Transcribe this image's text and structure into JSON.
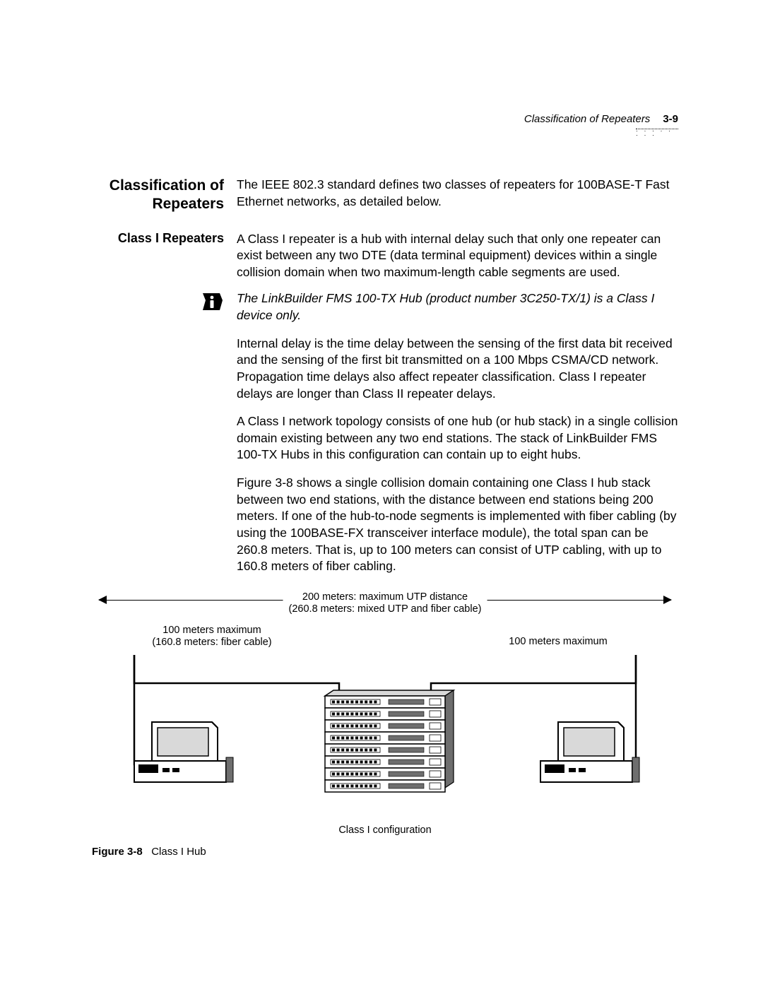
{
  "header": {
    "running_title": "Classification of Repeaters",
    "page_number": "3-9"
  },
  "section": {
    "title_line1": "Classification of",
    "title_line2": "Repeaters",
    "intro": "The IEEE 802.3 standard defines two classes of repeaters for 100BASE-T Fast Ethernet networks, as detailed below."
  },
  "class1": {
    "heading": "Class I Repeaters",
    "p1": "A Class I repeater is a hub with internal delay such that only one repeater can exist between any two DTE (data terminal equipment) devices within a single collision domain when two maximum-length cable segments are used.",
    "note": "The LinkBuilder FMS 100-TX Hub (product number 3C250-TX/1) is a Class I device only.",
    "p2": "Internal delay is the time delay between the sensing of the first data bit received and the sensing of the first bit transmitted on a 100 Mbps CSMA/CD network. Propagation time delays also affect repeater classification. Class I repeater delays are longer than Class II repeater delays.",
    "p3": "A Class I network topology consists of one hub (or hub stack) in a single collision domain existing between any two end stations. The stack of LinkBuilder FMS 100-TX Hubs in this configuration can contain up to eight hubs.",
    "p4": "Figure 3-8 shows a single collision domain containing one Class I hub stack between two end stations, with the distance between end stations being 200 meters. If one of the hub-to-node segments is implemented with fiber cabling (by using the 100BASE-FX transceiver interface module), the total span can be 260.8 meters. That is, up to 100 meters can consist of UTP cabling, with up to 160.8 meters of fiber cabling."
  },
  "figure": {
    "top_label_line1": "200 meters: maximum UTP distance",
    "top_label_line2": "(260.8 meters: mixed UTP and fiber cable)",
    "left_seg_line1": "100 meters maximum",
    "left_seg_line2": "(160.8 meters: fiber cable)",
    "right_seg": "100 meters maximum",
    "bottom_label": "Class I configuration",
    "caption_bold": "Figure 3-8",
    "caption_rest": "Class I Hub",
    "hub_count": 8,
    "colors": {
      "stroke": "#000000",
      "fill_light": "#ffffff",
      "fill_gray": "#d9d9d9",
      "fill_dark": "#6e6e6e"
    }
  }
}
